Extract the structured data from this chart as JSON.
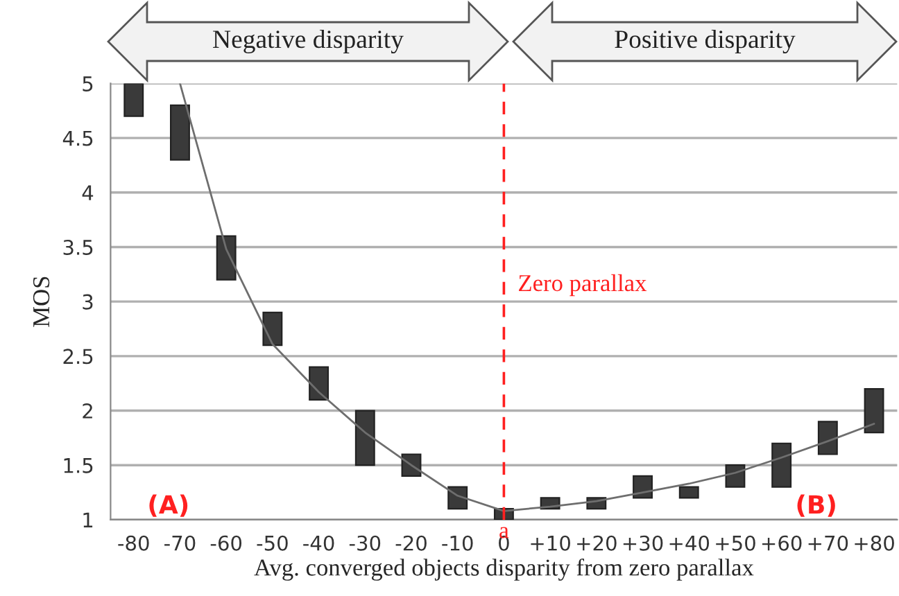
{
  "chart_data": {
    "type": "bar",
    "xlabel": "Avg. converged objects disparity from zero parallax",
    "ylabel": "MOS",
    "categories": [
      "-80",
      "-70",
      "-60",
      "-50",
      "-40",
      "-30",
      "-20",
      "-10",
      "0",
      "+10",
      "+20",
      "+30",
      "+40",
      "+50",
      "+60",
      "+70",
      "+80"
    ],
    "series": [
      {
        "color": "#3a3a3a",
        "base": [
          4.7,
          4.3,
          3.2,
          2.6,
          2.1,
          1.5,
          1.4,
          1.1,
          1.0,
          1.1,
          1.1,
          1.2,
          1.2,
          1.3,
          1.3,
          1.6,
          1.8
        ],
        "values": [
          0.3,
          0.5,
          0.4,
          0.3,
          0.3,
          0.5,
          0.2,
          0.2,
          0.1,
          0.1,
          0.1,
          0.2,
          0.1,
          0.2,
          0.4,
          0.3,
          0.4
        ]
      },
      {
        "type": "line",
        "color": "#6e6e6e",
        "values": [
          null,
          5.0,
          3.48,
          2.61,
          2.17,
          1.8,
          1.5,
          1.22,
          1.08,
          1.12,
          1.17,
          1.25,
          1.33,
          1.43,
          1.57,
          1.72,
          1.88
        ]
      }
    ],
    "ylim": [
      1,
      5
    ],
    "yticks": [
      1,
      1.5,
      2,
      2.5,
      3,
      3.5,
      4,
      4.5,
      5
    ],
    "grid": "y",
    "ref_lines": [
      {
        "axis": "x",
        "value": "0",
        "label": "Zero parallax",
        "color": "#ff2020",
        "line_style": "dashed"
      }
    ],
    "annotations": [
      "Negative disparity",
      "Positive disparity",
      "(A)",
      "(B)",
      "a"
    ]
  }
}
